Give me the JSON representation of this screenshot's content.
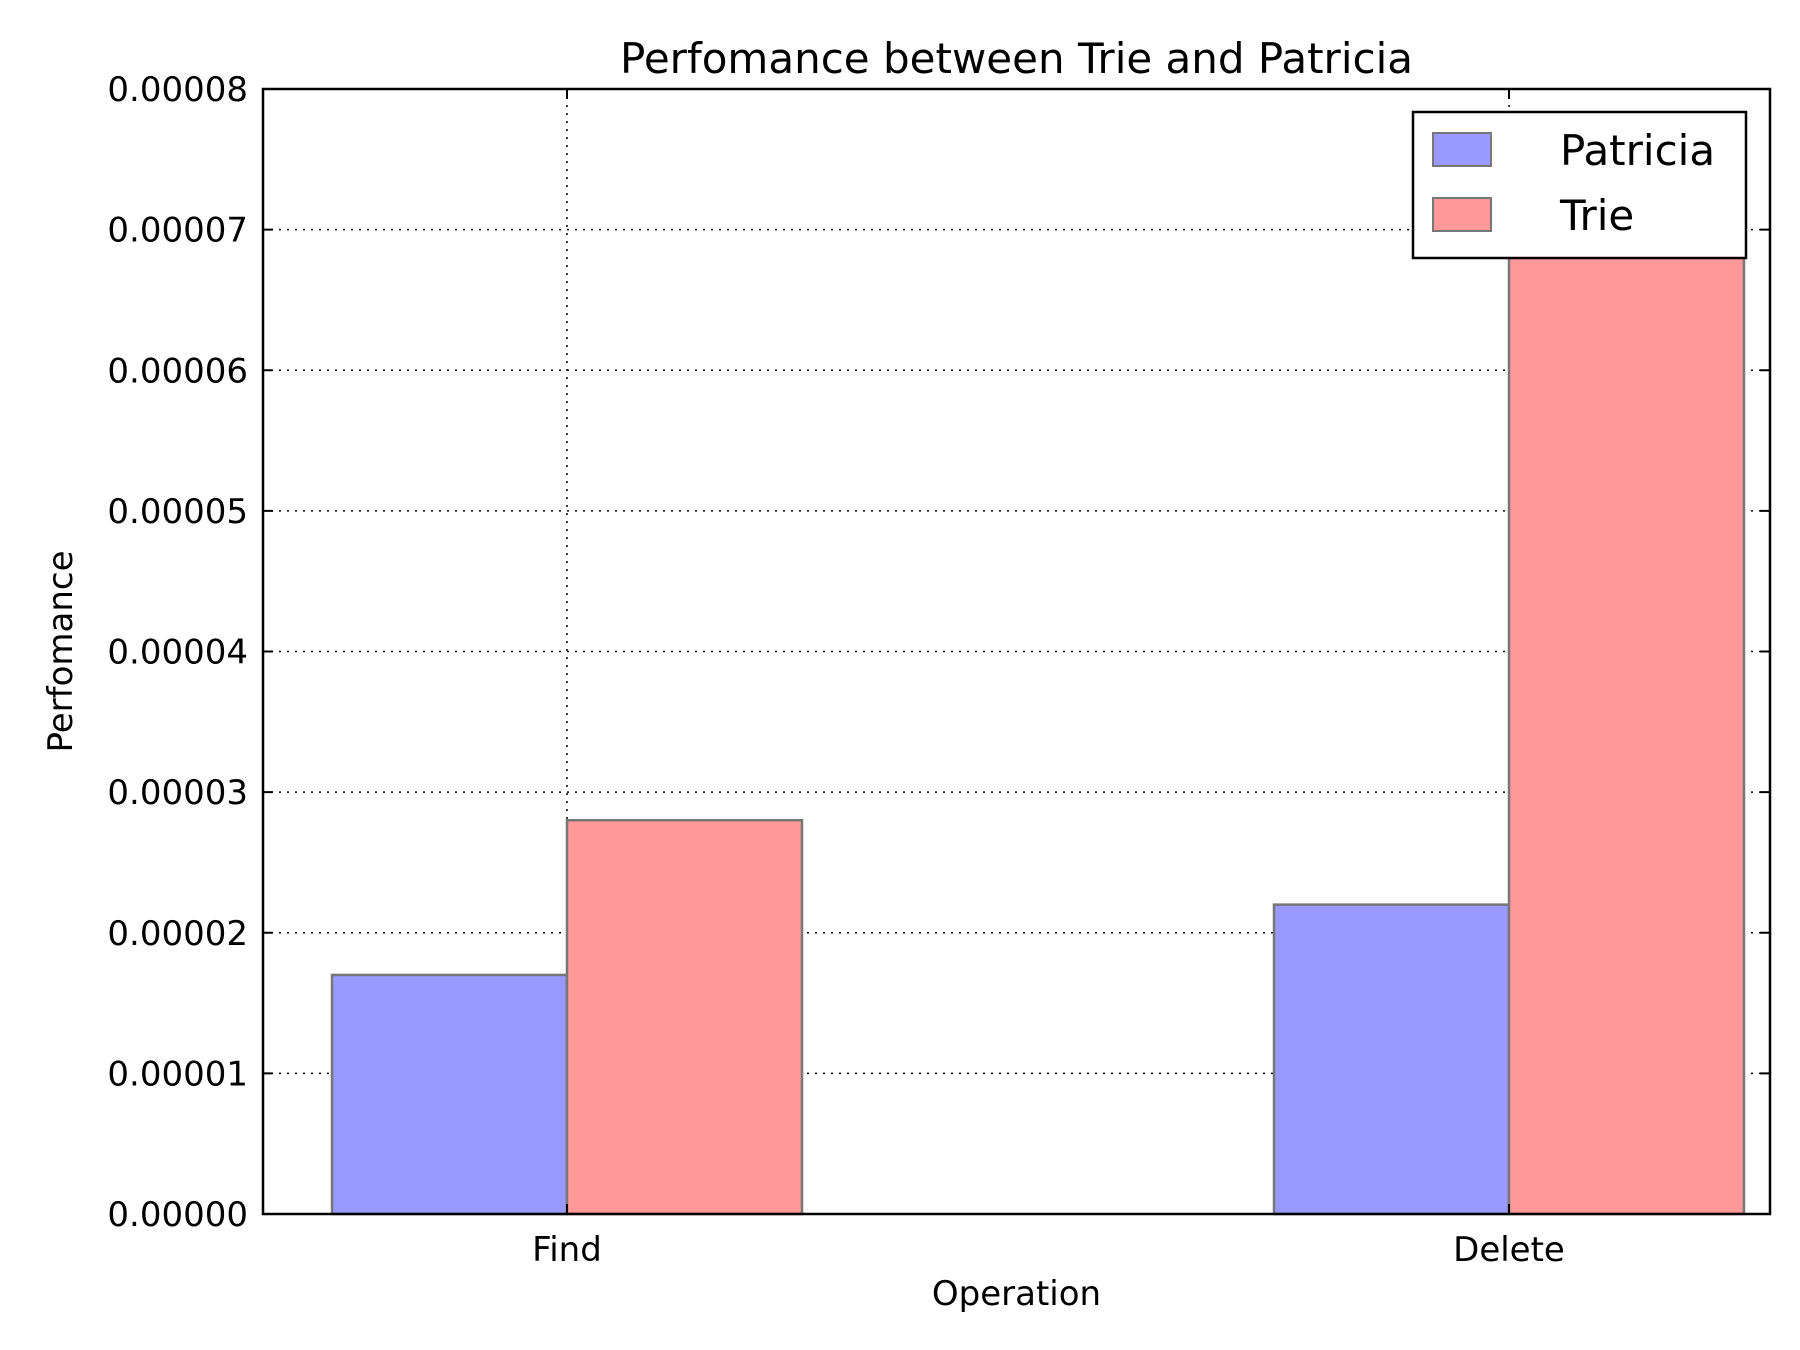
{
  "chart_data": {
    "type": "bar",
    "title": "Perfomance between Trie and Patricia",
    "xlabel": "Operation",
    "ylabel": "Perfomance",
    "categories": [
      "Find",
      "Delete"
    ],
    "series": [
      {
        "name": "Patricia",
        "values": [
          1.7e-05,
          2.2e-05
        ],
        "color": "#9999ff"
      },
      {
        "name": "Trie",
        "values": [
          2.8e-05,
          6.8e-05
        ],
        "color": "#ff9999"
      }
    ],
    "ylim": [
      0,
      8e-05
    ],
    "yticks": [
      "0.00000",
      "0.00001",
      "0.00002",
      "0.00003",
      "0.00004",
      "0.00005",
      "0.00006",
      "0.00007",
      "0.00008"
    ],
    "ytick_values": [
      0,
      1e-05,
      2e-05,
      3e-05,
      4e-05,
      5e-05,
      6e-05,
      7e-05,
      8e-05
    ],
    "grid": true,
    "legend_position": "top-right",
    "bar_edge_color": "#777777"
  }
}
